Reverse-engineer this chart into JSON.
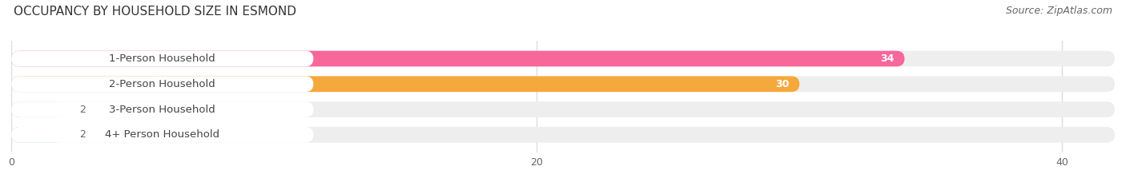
{
  "title": "OCCUPANCY BY HOUSEHOLD SIZE IN ESMOND",
  "source": "Source: ZipAtlas.com",
  "categories": [
    "1-Person Household",
    "2-Person Household",
    "3-Person Household",
    "4+ Person Household"
  ],
  "values": [
    34,
    30,
    2,
    2
  ],
  "bar_colors": [
    "#F8679A",
    "#F5A83B",
    "#F4AABA",
    "#A8C4E0"
  ],
  "xlim": [
    0,
    42
  ],
  "xticks": [
    0,
    20,
    40
  ],
  "background_color": "#FFFFFF",
  "bar_bg_color": "#EEEEEE",
  "title_fontsize": 11,
  "source_fontsize": 9,
  "label_fontsize": 9.5,
  "value_fontsize": 9,
  "bar_height": 0.62
}
